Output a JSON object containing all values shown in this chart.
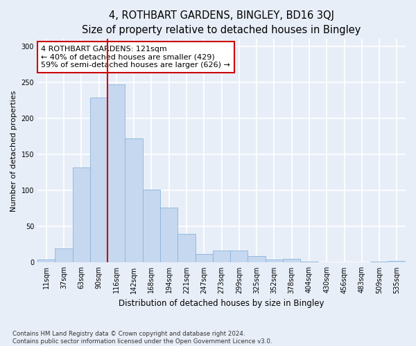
{
  "title1": "4, ROTHBART GARDENS, BINGLEY, BD16 3QJ",
  "title2": "Size of property relative to detached houses in Bingley",
  "xlabel": "Distribution of detached houses by size in Bingley",
  "ylabel": "Number of detached properties",
  "bar_color": "#c5d8f0",
  "bar_edge_color": "#8ab4d8",
  "categories": [
    "11sqm",
    "37sqm",
    "63sqm",
    "90sqm",
    "116sqm",
    "142sqm",
    "168sqm",
    "194sqm",
    "221sqm",
    "247sqm",
    "273sqm",
    "299sqm",
    "325sqm",
    "352sqm",
    "378sqm",
    "404sqm",
    "430sqm",
    "456sqm",
    "483sqm",
    "509sqm",
    "535sqm"
  ],
  "values": [
    4,
    20,
    132,
    229,
    247,
    172,
    101,
    76,
    40,
    12,
    17,
    17,
    9,
    4,
    5,
    1,
    0,
    0,
    0,
    1,
    2
  ],
  "property_bin_index": 4,
  "annotation_text": "4 ROTHBART GARDENS: 121sqm\n← 40% of detached houses are smaller (429)\n59% of semi-detached houses are larger (626) →",
  "annotation_box_color": "white",
  "annotation_box_edge_color": "#cc0000",
  "vline_color": "#cc0000",
  "ylim": [
    0,
    310
  ],
  "yticks": [
    0,
    50,
    100,
    150,
    200,
    250,
    300
  ],
  "background_color": "#e8eef8",
  "grid_color": "white",
  "footnote": "Contains HM Land Registry data © Crown copyright and database right 2024.\nContains public sector information licensed under the Open Government Licence v3.0.",
  "title1_fontsize": 10.5,
  "title2_fontsize": 9.5,
  "xlabel_fontsize": 8.5,
  "ylabel_fontsize": 8,
  "tick_fontsize": 7,
  "annotation_fontsize": 8
}
